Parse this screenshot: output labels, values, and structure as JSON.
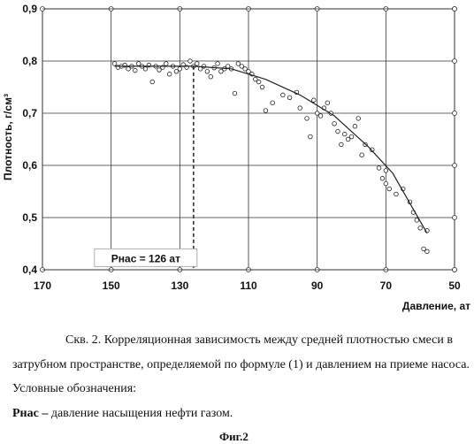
{
  "chart_data": {
    "type": "scatter",
    "ylabel": "Плотность, г/см³",
    "xlabel": "Давление, ат",
    "x_ticks": [
      "170",
      "150",
      "130",
      "110",
      "90",
      "70",
      "50"
    ],
    "y_ticks": [
      "0,9",
      "0,8",
      "0,7",
      "0,6",
      "0,5",
      "0,4"
    ],
    "xlim": [
      170,
      50
    ],
    "ylim": [
      0.4,
      0.9
    ],
    "x_reversed": true,
    "grid": true,
    "annotation": "Рнас = 126 ат",
    "annotation_x": 126,
    "saturation_point": {
      "x": 126,
      "y": 0.79
    },
    "points": [
      {
        "x": 149,
        "y": 0.795
      },
      {
        "x": 148,
        "y": 0.788
      },
      {
        "x": 147,
        "y": 0.79
      },
      {
        "x": 146,
        "y": 0.792
      },
      {
        "x": 145,
        "y": 0.785
      },
      {
        "x": 144,
        "y": 0.79
      },
      {
        "x": 143,
        "y": 0.782
      },
      {
        "x": 142,
        "y": 0.795
      },
      {
        "x": 141,
        "y": 0.79
      },
      {
        "x": 140,
        "y": 0.785
      },
      {
        "x": 139,
        "y": 0.792
      },
      {
        "x": 138,
        "y": 0.76
      },
      {
        "x": 137,
        "y": 0.79
      },
      {
        "x": 136,
        "y": 0.783
      },
      {
        "x": 135,
        "y": 0.788
      },
      {
        "x": 134,
        "y": 0.795
      },
      {
        "x": 133,
        "y": 0.775
      },
      {
        "x": 132,
        "y": 0.79
      },
      {
        "x": 131,
        "y": 0.78
      },
      {
        "x": 130,
        "y": 0.785
      },
      {
        "x": 129,
        "y": 0.793
      },
      {
        "x": 128,
        "y": 0.788
      },
      {
        "x": 127,
        "y": 0.8
      },
      {
        "x": 126,
        "y": 0.79
      },
      {
        "x": 125,
        "y": 0.795
      },
      {
        "x": 124,
        "y": 0.785
      },
      {
        "x": 123,
        "y": 0.79
      },
      {
        "x": 122,
        "y": 0.78
      },
      {
        "x": 121,
        "y": 0.77
      },
      {
        "x": 120,
        "y": 0.787
      },
      {
        "x": 119,
        "y": 0.795
      },
      {
        "x": 118,
        "y": 0.78
      },
      {
        "x": 117,
        "y": 0.785
      },
      {
        "x": 116,
        "y": 0.79
      },
      {
        "x": 115,
        "y": 0.785
      },
      {
        "x": 114,
        "y": 0.738
      },
      {
        "x": 113,
        "y": 0.795
      },
      {
        "x": 112,
        "y": 0.79
      },
      {
        "x": 111,
        "y": 0.785
      },
      {
        "x": 110,
        "y": 0.78
      },
      {
        "x": 109,
        "y": 0.775
      },
      {
        "x": 108,
        "y": 0.765
      },
      {
        "x": 107,
        "y": 0.76
      },
      {
        "x": 106,
        "y": 0.75
      },
      {
        "x": 105,
        "y": 0.705
      },
      {
        "x": 103,
        "y": 0.72
      },
      {
        "x": 100,
        "y": 0.735
      },
      {
        "x": 98,
        "y": 0.73
      },
      {
        "x": 96,
        "y": 0.74
      },
      {
        "x": 95,
        "y": 0.71
      },
      {
        "x": 93,
        "y": 0.69
      },
      {
        "x": 92,
        "y": 0.655
      },
      {
        "x": 91,
        "y": 0.725
      },
      {
        "x": 90,
        "y": 0.7
      },
      {
        "x": 89,
        "y": 0.695
      },
      {
        "x": 88,
        "y": 0.71
      },
      {
        "x": 87,
        "y": 0.72
      },
      {
        "x": 86,
        "y": 0.7
      },
      {
        "x": 85,
        "y": 0.68
      },
      {
        "x": 84,
        "y": 0.665
      },
      {
        "x": 83,
        "y": 0.64
      },
      {
        "x": 82,
        "y": 0.66
      },
      {
        "x": 81,
        "y": 0.65
      },
      {
        "x": 80,
        "y": 0.655
      },
      {
        "x": 79,
        "y": 0.675
      },
      {
        "x": 78,
        "y": 0.69
      },
      {
        "x": 77,
        "y": 0.62
      },
      {
        "x": 76,
        "y": 0.64
      },
      {
        "x": 74,
        "y": 0.63
      },
      {
        "x": 72,
        "y": 0.595
      },
      {
        "x": 71,
        "y": 0.575
      },
      {
        "x": 70,
        "y": 0.59
      },
      {
        "x": 70,
        "y": 0.565
      },
      {
        "x": 69,
        "y": 0.555
      },
      {
        "x": 67,
        "y": 0.545
      },
      {
        "x": 65,
        "y": 0.555
      },
      {
        "x": 63,
        "y": 0.53
      },
      {
        "x": 62,
        "y": 0.51
      },
      {
        "x": 61,
        "y": 0.495
      },
      {
        "x": 60,
        "y": 0.48
      },
      {
        "x": 59,
        "y": 0.44
      },
      {
        "x": 58,
        "y": 0.435
      },
      {
        "x": 58,
        "y": 0.475
      }
    ],
    "trend_line": [
      {
        "x": 149,
        "y": 0.79
      },
      {
        "x": 126,
        "y": 0.79
      },
      {
        "x": 115,
        "y": 0.785
      },
      {
        "x": 105,
        "y": 0.765
      },
      {
        "x": 95,
        "y": 0.735
      },
      {
        "x": 85,
        "y": 0.695
      },
      {
        "x": 75,
        "y": 0.635
      },
      {
        "x": 68,
        "y": 0.585
      },
      {
        "x": 58,
        "y": 0.47
      }
    ]
  },
  "caption": {
    "line1": "Скв. 2. Корреляционная зависимость  между средней плотностью смеси в",
    "line2": "затрубном пространстве, определяемой по формуле (1) и давлением на приеме насоса.",
    "line3": "Условные обозначения:",
    "line4_bold": "Рнас –",
    "line4_rest": " давление насыщения нефти газом.",
    "figure": "Фиг.2"
  }
}
